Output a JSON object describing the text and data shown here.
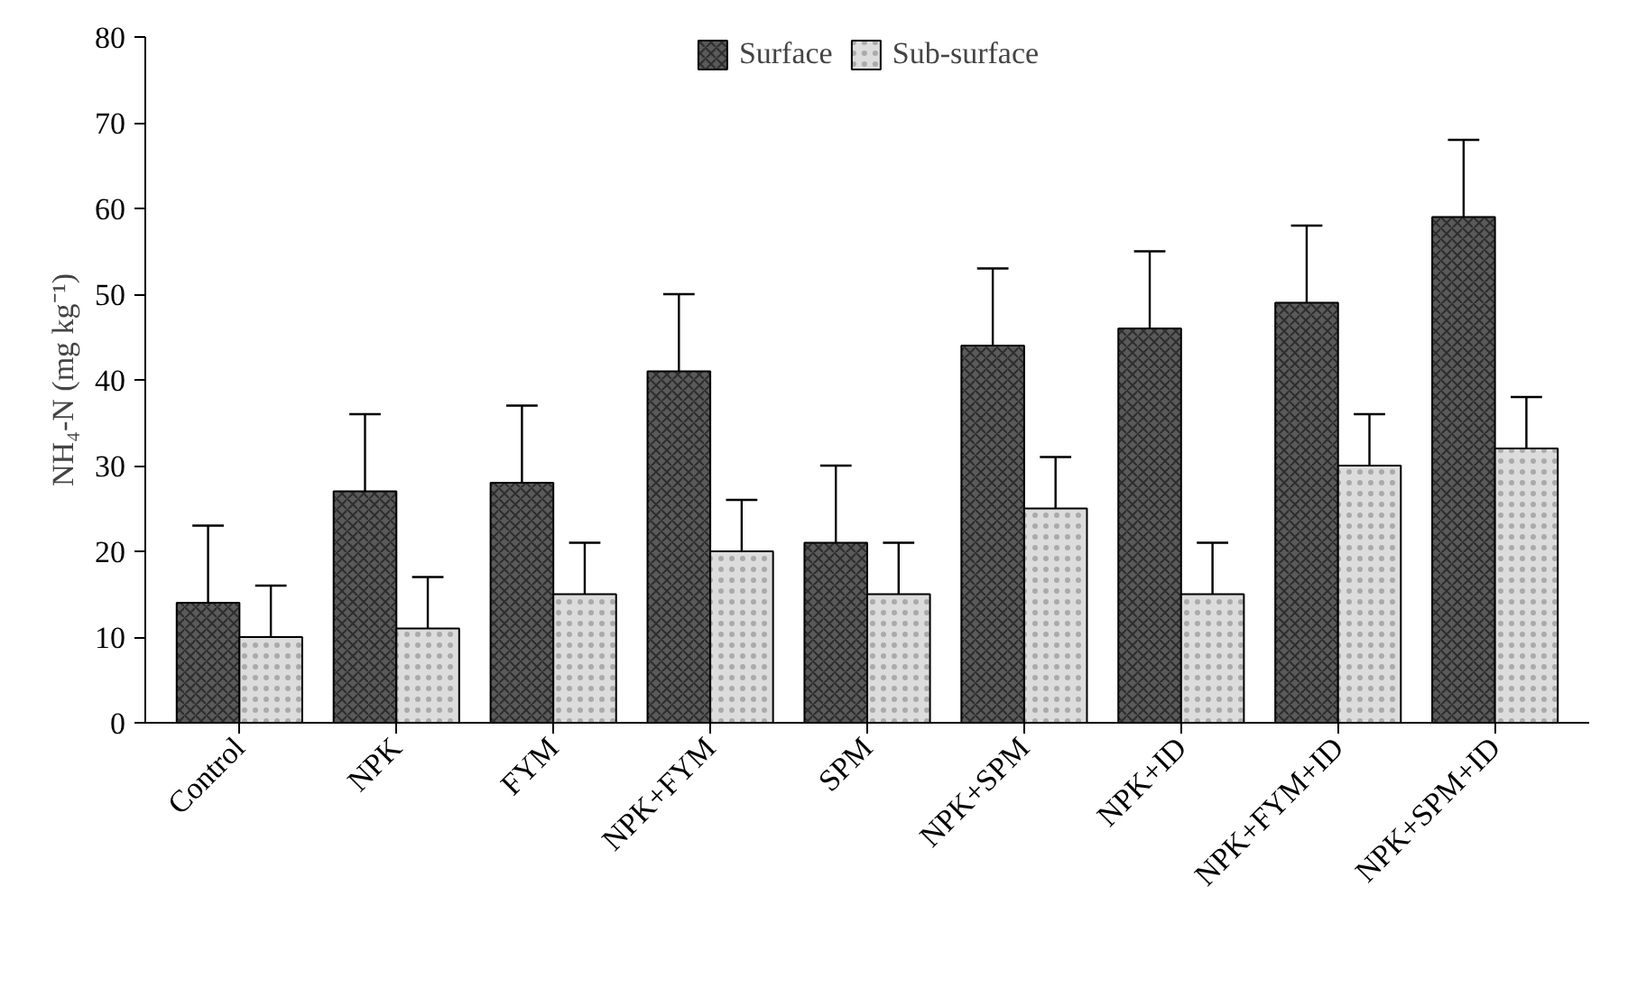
{
  "chart_data": {
    "type": "bar",
    "ylabel": "NH₄-N (mg kg⁻¹)",
    "categories": [
      "Control",
      "NPK",
      "FYM",
      "NPK+FYM",
      "SPM",
      "NPK+SPM",
      "NPK+ID",
      "NPK+FYM+ID",
      "NPK+SPM+ID"
    ],
    "series": [
      {
        "name": "Surface",
        "color": "#5a5a5a",
        "values": [
          14,
          27,
          28,
          41,
          21,
          44,
          46,
          49,
          59
        ],
        "errors": [
          [
            14,
            23
          ],
          [
            27,
            36
          ],
          [
            28,
            37
          ],
          [
            41,
            50
          ],
          [
            21,
            30
          ],
          [
            44,
            53
          ],
          [
            46,
            55
          ],
          [
            49,
            58
          ],
          [
            59,
            68
          ]
        ]
      },
      {
        "name": "Sub-surface",
        "color": "#dcdcdc",
        "values": [
          10,
          11,
          15,
          20,
          15,
          25,
          15,
          30,
          32
        ],
        "errors": [
          [
            10,
            16
          ],
          [
            11,
            17
          ],
          [
            15,
            21
          ],
          [
            20,
            26
          ],
          [
            15,
            21
          ],
          [
            25,
            31
          ],
          [
            15,
            21
          ],
          [
            30,
            36
          ],
          [
            32,
            38
          ]
        ]
      }
    ],
    "ylim": [
      0,
      80
    ],
    "yticks": [
      0,
      10,
      20,
      30,
      40,
      50,
      60,
      70,
      80
    ],
    "grid": false,
    "legend": "top"
  }
}
